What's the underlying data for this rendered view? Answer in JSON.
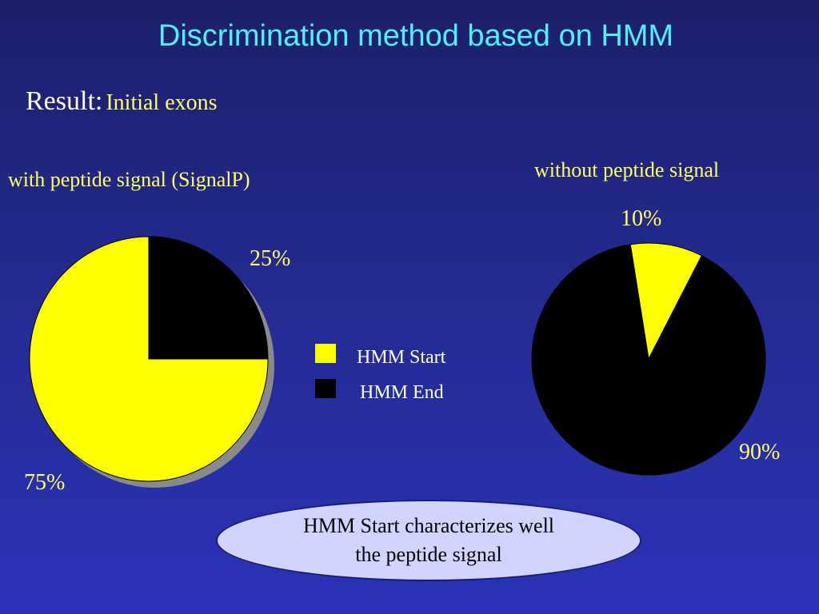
{
  "slide": {
    "title": "Discrimination method based on HMM",
    "subtitle_lead": "Result:",
    "subtitle_rest": "Initial exons",
    "callout_line1": "HMM Start characterizes well",
    "callout_line2": "the peptide signal"
  },
  "legend": [
    {
      "label": "HMM Start",
      "color": "#ffff00"
    },
    {
      "label": "HMM End",
      "color": "#000000"
    }
  ],
  "chart_data": [
    {
      "type": "pie",
      "title": "with peptide signal (SignalP)",
      "slices": [
        {
          "name": "HMM Start",
          "value": 75,
          "label": "75%"
        },
        {
          "name": "HMM End",
          "value": 25,
          "label": "25%"
        }
      ],
      "colors": [
        "#ffff00",
        "#000000"
      ]
    },
    {
      "type": "pie",
      "title": "without peptide signal",
      "slices": [
        {
          "name": "HMM Start",
          "value": 10,
          "label": "10%"
        },
        {
          "name": "HMM End",
          "value": 90,
          "label": "90%"
        }
      ],
      "colors": [
        "#ffff00",
        "#000000"
      ]
    }
  ]
}
